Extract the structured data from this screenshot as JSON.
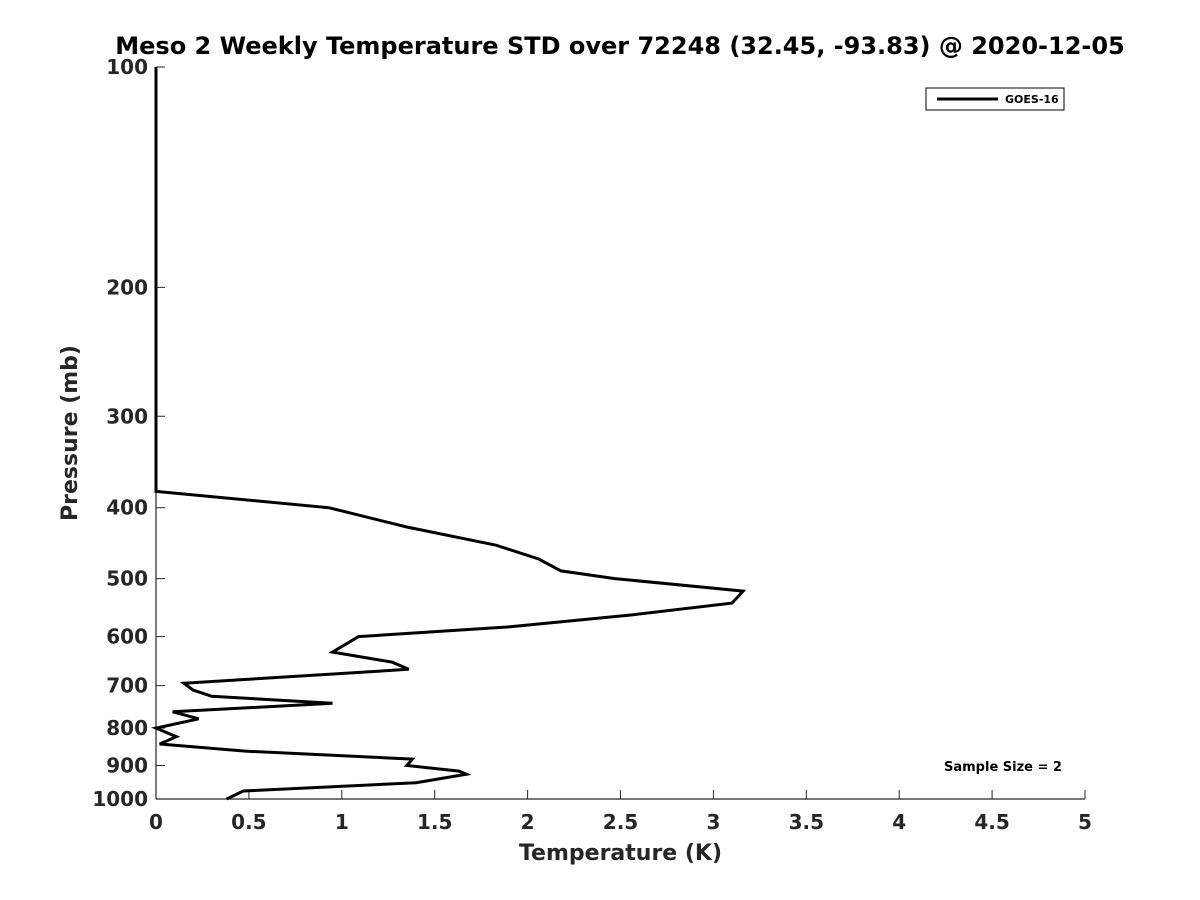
{
  "chart_data": {
    "type": "line",
    "title": "Meso 2 Weekly Temperature STD over 72248 (32.45, -93.83) @ 2020-12-05",
    "xlabel": "Temperature (K)",
    "ylabel": "Pressure (mb)",
    "xlim": [
      0,
      5
    ],
    "ylim": [
      100,
      1000
    ],
    "y_scale": "log",
    "y_reversed": true,
    "grid": false,
    "legend_position": "top-right",
    "x_ticks": [
      0,
      0.5,
      1,
      1.5,
      2,
      2.5,
      3,
      3.5,
      4,
      4.5,
      5
    ],
    "x_tick_labels": [
      "0",
      "0.5",
      "1",
      "1.5",
      "2",
      "2.5",
      "3",
      "3.5",
      "4",
      "4.5",
      "5"
    ],
    "y_ticks": [
      100,
      200,
      300,
      400,
      500,
      600,
      700,
      800,
      900,
      1000
    ],
    "y_tick_labels": [
      "100",
      "200",
      "300",
      "400",
      "500",
      "600",
      "700",
      "800",
      "900",
      "1000"
    ],
    "series": [
      {
        "name": "GOES-16",
        "color": "#000000",
        "points": [
          {
            "x": 0.0,
            "p": 100
          },
          {
            "x": 0.0,
            "p": 150
          },
          {
            "x": 0.0,
            "p": 200
          },
          {
            "x": 0.0,
            "p": 250
          },
          {
            "x": 0.0,
            "p": 300
          },
          {
            "x": 0.0,
            "p": 350
          },
          {
            "x": 0.0,
            "p": 380
          },
          {
            "x": 0.93,
            "p": 400
          },
          {
            "x": 1.35,
            "p": 425
          },
          {
            "x": 1.83,
            "p": 450
          },
          {
            "x": 2.06,
            "p": 470
          },
          {
            "x": 2.18,
            "p": 488
          },
          {
            "x": 2.47,
            "p": 500
          },
          {
            "x": 3.16,
            "p": 520
          },
          {
            "x": 3.1,
            "p": 540
          },
          {
            "x": 2.57,
            "p": 560
          },
          {
            "x": 1.9,
            "p": 582
          },
          {
            "x": 1.09,
            "p": 600
          },
          {
            "x": 0.95,
            "p": 630
          },
          {
            "x": 1.27,
            "p": 650
          },
          {
            "x": 1.36,
            "p": 665
          },
          {
            "x": 0.15,
            "p": 695
          },
          {
            "x": 0.2,
            "p": 710
          },
          {
            "x": 0.3,
            "p": 724
          },
          {
            "x": 0.95,
            "p": 740
          },
          {
            "x": 0.09,
            "p": 760
          },
          {
            "x": 0.23,
            "p": 777
          },
          {
            "x": 0.0,
            "p": 800
          },
          {
            "x": 0.11,
            "p": 822
          },
          {
            "x": 0.02,
            "p": 841
          },
          {
            "x": 0.48,
            "p": 860
          },
          {
            "x": 1.38,
            "p": 882
          },
          {
            "x": 1.35,
            "p": 900
          },
          {
            "x": 1.63,
            "p": 916
          },
          {
            "x": 1.67,
            "p": 925
          },
          {
            "x": 1.4,
            "p": 950
          },
          {
            "x": 0.47,
            "p": 975
          },
          {
            "x": 0.38,
            "p": 1000
          }
        ]
      }
    ],
    "annotations": [
      "Sample Size = 2"
    ]
  }
}
